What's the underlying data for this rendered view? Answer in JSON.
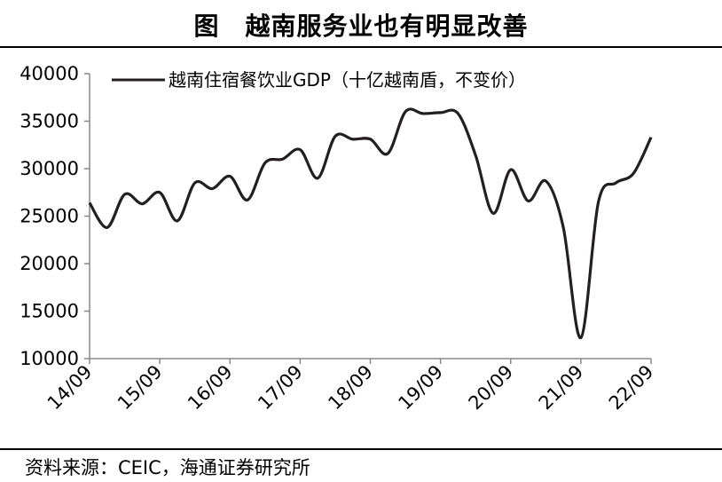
{
  "figure": {
    "title": "图　越南服务业也有明显改善",
    "source": "资料来源：CEIC，海通证券研究所"
  },
  "chart_data": {
    "type": "line",
    "title": "越南服务业也有明显改善",
    "xlabel": "",
    "ylabel": "",
    "ylim": [
      10000,
      40000
    ],
    "yticks": [
      10000,
      15000,
      20000,
      25000,
      30000,
      35000,
      40000
    ],
    "xticks": [
      "14/09",
      "15/09",
      "16/09",
      "17/09",
      "18/09",
      "19/09",
      "20/09",
      "21/09",
      "22/09"
    ],
    "grid": false,
    "legend": "top-left",
    "series": [
      {
        "name": "越南住宿餐饮业GDP（十亿越南盾，不变价）",
        "color": "#231f20",
        "x": [
          0,
          0.25,
          0.5,
          0.75,
          1,
          1.25,
          1.5,
          1.75,
          2,
          2.25,
          2.5,
          2.75,
          3,
          3.25,
          3.5,
          3.75,
          4,
          4.25,
          4.5,
          4.75,
          5,
          5.25,
          5.5,
          5.75,
          6,
          6.25,
          6.5,
          6.75,
          7,
          7.25,
          7.5,
          7.75,
          8
        ],
        "values": [
          26400,
          23800,
          27300,
          26300,
          27500,
          24500,
          28500,
          27900,
          29200,
          26700,
          30600,
          31000,
          32000,
          29000,
          33400,
          33100,
          33100,
          31600,
          36000,
          35800,
          35900,
          35800,
          31400,
          25300,
          29900,
          26600,
          28700,
          23800,
          12200,
          26500,
          28500,
          29500,
          33300
        ]
      }
    ]
  }
}
